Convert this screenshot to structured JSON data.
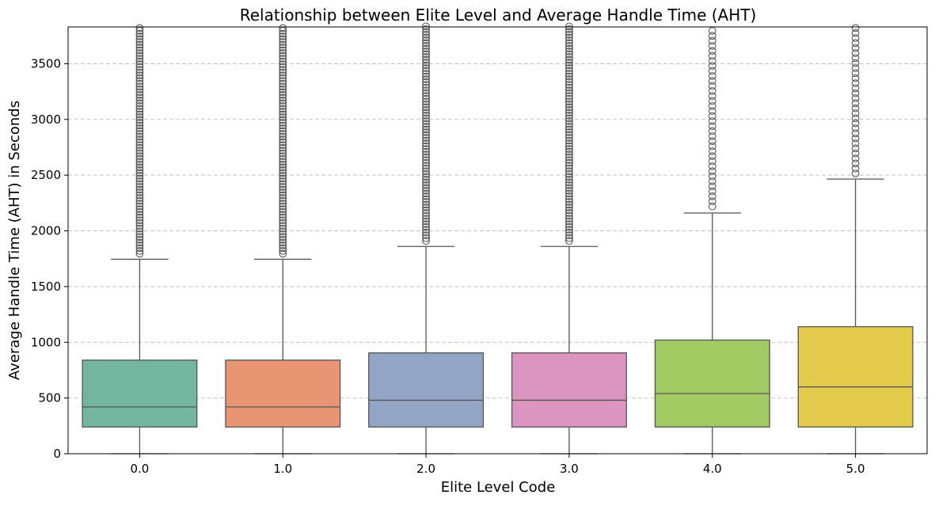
{
  "chart_data": {
    "type": "box",
    "title": "Relationship between Elite Level and Average Handle Time (AHT)",
    "xlabel": "Elite Level Code",
    "ylabel": "Average Handle Time (AHT) in Seconds",
    "ylim": [
      0,
      3830
    ],
    "yticks": [
      0,
      500,
      1000,
      1500,
      2000,
      2500,
      3000,
      3500
    ],
    "grid": "y-dashed",
    "categories": [
      "0.0",
      "1.0",
      "2.0",
      "3.0",
      "4.0",
      "5.0"
    ],
    "colors": [
      "#73b59e",
      "#e89574",
      "#94a4c4",
      "#dc94c0",
      "#a2ca62",
      "#e4ca4a"
    ],
    "edge_color": "#555555",
    "boxes": [
      {
        "category": "0.0",
        "whisker_low": 0,
        "q1": 240,
        "median": 420,
        "q3": 840,
        "whisker_high": 1745,
        "outliers_from": 1795,
        "outlier_step": 25
      },
      {
        "category": "1.0",
        "whisker_low": 0,
        "q1": 240,
        "median": 420,
        "q3": 840,
        "whisker_high": 1745,
        "outliers_from": 1795,
        "outlier_step": 25
      },
      {
        "category": "2.0",
        "whisker_low": 0,
        "q1": 240,
        "median": 480,
        "q3": 905,
        "whisker_high": 1860,
        "outliers_from": 1910,
        "outlier_step": 25
      },
      {
        "category": "3.0",
        "whisker_low": 0,
        "q1": 240,
        "median": 480,
        "q3": 905,
        "whisker_high": 1860,
        "outliers_from": 1910,
        "outlier_step": 25
      },
      {
        "category": "4.0",
        "whisker_low": 0,
        "q1": 240,
        "median": 540,
        "q3": 1020,
        "whisker_high": 2160,
        "outliers_from": 2220,
        "outlier_step": 45
      },
      {
        "category": "5.0",
        "whisker_low": 0,
        "q1": 240,
        "median": 600,
        "q3": 1140,
        "whisker_high": 2465,
        "outliers_from": 2515,
        "outlier_step": 45
      }
    ]
  }
}
